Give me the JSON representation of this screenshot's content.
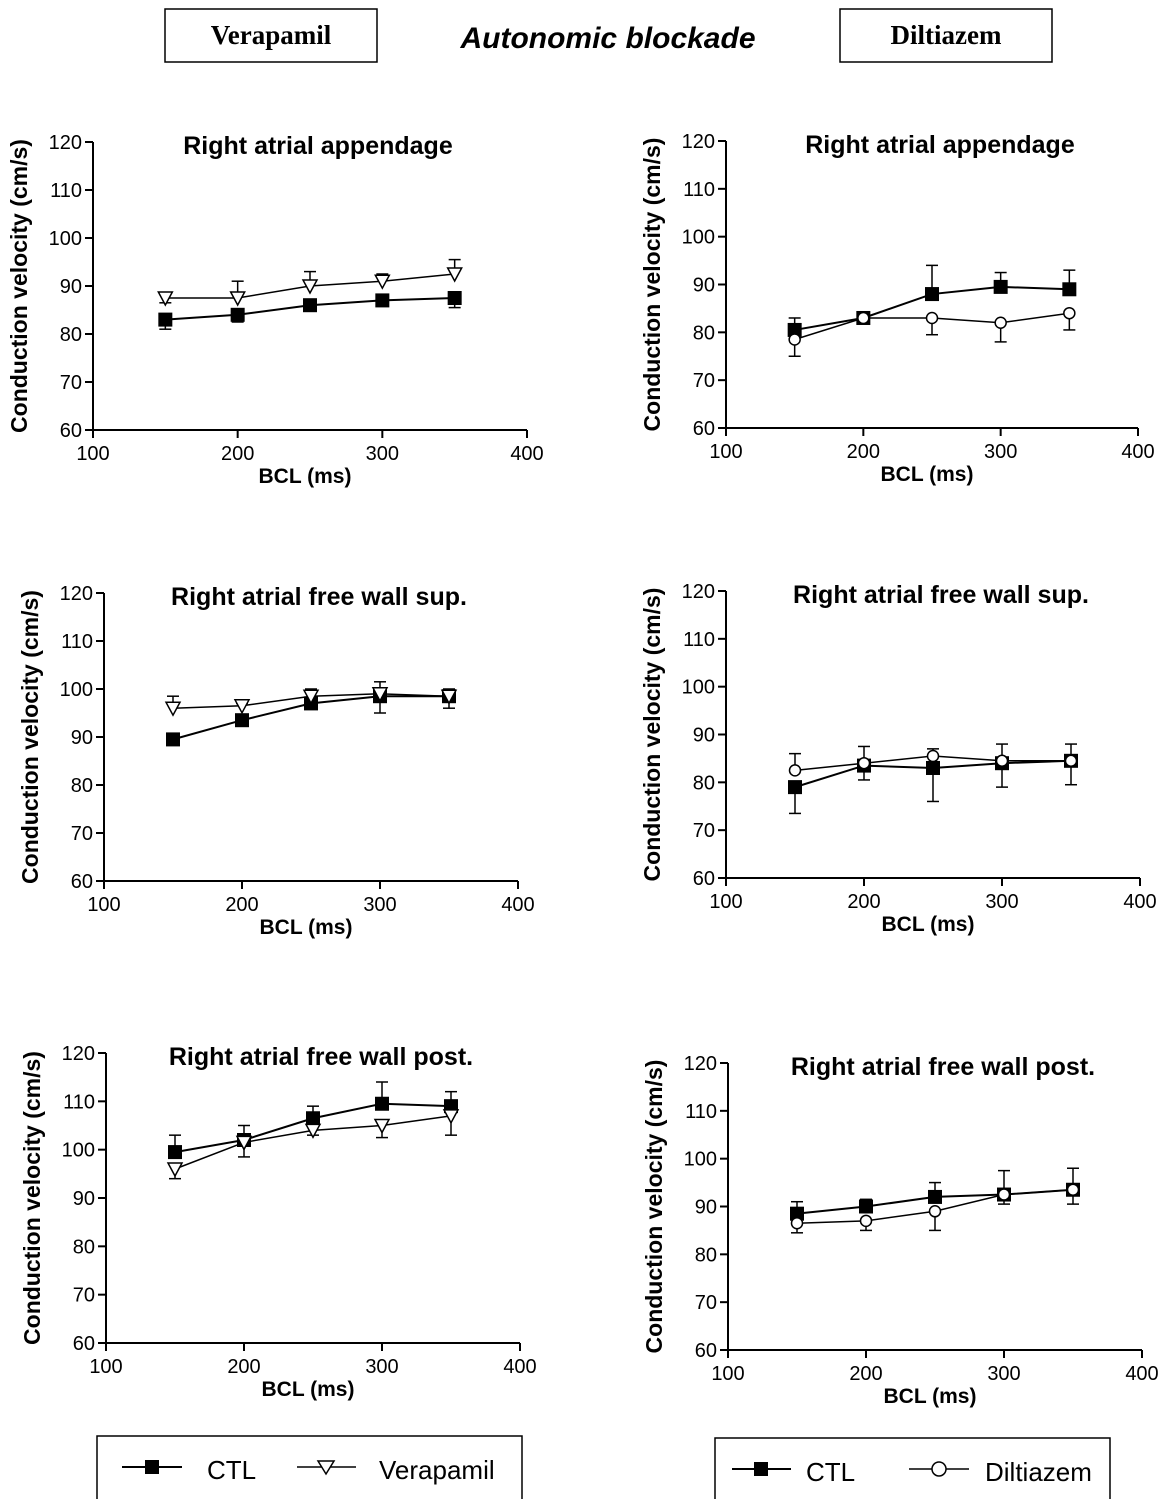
{
  "header": {
    "left_label": "Verapamil",
    "title": "Autonomic blockade",
    "right_label": "Diltiazem"
  },
  "legends": {
    "left": {
      "ctl": "CTL",
      "drug": "Verapamil"
    },
    "right": {
      "ctl": "CTL",
      "drug": "Diltiazem"
    }
  },
  "chart_data": [
    {
      "type": "line",
      "title": "Right atrial appendage",
      "xlabel": "BCL (ms)",
      "ylabel": "Conduction velocity (cm/s)",
      "xlim": [
        100,
        400
      ],
      "ylim": [
        60,
        120
      ],
      "xticks": [
        100,
        200,
        300,
        400
      ],
      "yticks": [
        60,
        70,
        80,
        90,
        100,
        110,
        120
      ],
      "x": [
        150,
        200,
        250,
        300,
        350
      ],
      "series": [
        {
          "name": "CTL",
          "marker": "filled-square",
          "values": [
            83,
            84,
            86,
            87,
            87.5
          ],
          "error": [
            2,
            1.5,
            1,
            1,
            2
          ],
          "error_dir": [
            -1,
            -1,
            -1,
            -1,
            -1
          ]
        },
        {
          "name": "Verapamil",
          "marker": "open-triangle-down",
          "values": [
            87.5,
            87.5,
            90,
            91,
            92.5
          ],
          "error": [
            1,
            3.5,
            3,
            1.5,
            3
          ],
          "error_dir": [
            -1,
            1,
            1,
            1,
            1
          ]
        }
      ]
    },
    {
      "type": "line",
      "title": "Right atrial appendage",
      "xlabel": "BCL (ms)",
      "ylabel": "Conduction velocity (cm/s)",
      "xlim": [
        100,
        400
      ],
      "ylim": [
        60,
        120
      ],
      "xticks": [
        100,
        200,
        300,
        400
      ],
      "yticks": [
        60,
        70,
        80,
        90,
        100,
        110,
        120
      ],
      "x": [
        150,
        200,
        250,
        300,
        350
      ],
      "series": [
        {
          "name": "CTL",
          "marker": "filled-square",
          "values": [
            80.5,
            83,
            88,
            89.5,
            89
          ],
          "error": [
            2.5,
            1,
            6,
            3,
            4
          ],
          "error_dir": [
            1,
            1,
            1,
            1,
            1
          ]
        },
        {
          "name": "Diltiazem",
          "marker": "open-circle",
          "values": [
            78.5,
            83,
            83,
            82,
            84
          ],
          "error": [
            3.5,
            1,
            3.5,
            4,
            3.5
          ],
          "error_dir": [
            -1,
            -1,
            -1,
            -1,
            -1
          ]
        }
      ]
    },
    {
      "type": "line",
      "title": "Right atrial free wall sup.",
      "xlabel": "BCL (ms)",
      "ylabel": "Conduction velocity (cm/s)",
      "xlim": [
        100,
        400
      ],
      "ylim": [
        60,
        120
      ],
      "xticks": [
        100,
        200,
        300,
        400
      ],
      "yticks": [
        60,
        70,
        80,
        90,
        100,
        110,
        120
      ],
      "x": [
        150,
        200,
        250,
        300,
        350
      ],
      "series": [
        {
          "name": "CTL",
          "marker": "filled-square",
          "values": [
            89.5,
            93.5,
            97,
            98.5,
            98.5
          ],
          "error": [
            1,
            1,
            1,
            3.5,
            2.5
          ],
          "error_dir": [
            -1,
            -1,
            -1,
            -1,
            -1
          ]
        },
        {
          "name": "Verapamil",
          "marker": "open-triangle-down",
          "values": [
            96,
            96.5,
            98.5,
            99,
            98.5
          ],
          "error": [
            2.5,
            0.5,
            1.5,
            2.5,
            1.5
          ],
          "error_dir": [
            1,
            1,
            1,
            1,
            1
          ]
        }
      ]
    },
    {
      "type": "line",
      "title": "Right atrial free wall sup.",
      "xlabel": "BCL (ms)",
      "ylabel": "Conduction velocity (cm/s)",
      "xlim": [
        100,
        400
      ],
      "ylim": [
        60,
        120
      ],
      "xticks": [
        100,
        200,
        300,
        400
      ],
      "yticks": [
        60,
        70,
        80,
        90,
        100,
        110,
        120
      ],
      "x": [
        150,
        200,
        250,
        300,
        350
      ],
      "series": [
        {
          "name": "CTL",
          "marker": "filled-square",
          "values": [
            79,
            83.5,
            83,
            84,
            84.5
          ],
          "error": [
            5.5,
            3,
            7,
            5,
            5
          ],
          "error_dir": [
            -1,
            -1,
            -1,
            -1,
            -1
          ]
        },
        {
          "name": "Diltiazem",
          "marker": "open-circle",
          "values": [
            82.5,
            84,
            85.5,
            84.5,
            84.5
          ],
          "error": [
            3.5,
            3.5,
            1.5,
            3.5,
            3.5
          ],
          "error_dir": [
            1,
            1,
            1,
            1,
            1
          ]
        }
      ]
    },
    {
      "type": "line",
      "title": "Right atrial free wall post.",
      "xlabel": "BCL (ms)",
      "ylabel": "Conduction velocity (cm/s)",
      "xlim": [
        100,
        400
      ],
      "ylim": [
        60,
        120
      ],
      "xticks": [
        100,
        200,
        300,
        400
      ],
      "yticks": [
        60,
        70,
        80,
        90,
        100,
        110,
        120
      ],
      "x": [
        150,
        200,
        250,
        300,
        350
      ],
      "series": [
        {
          "name": "CTL",
          "marker": "filled-square",
          "values": [
            99.5,
            102,
            106.5,
            109.5,
            109
          ],
          "error": [
            3.5,
            3,
            2.5,
            4.5,
            3
          ],
          "error_dir": [
            1,
            1,
            1,
            1,
            1
          ]
        },
        {
          "name": "Verapamil",
          "marker": "open-triangle-down",
          "values": [
            96,
            101.5,
            104,
            105,
            107
          ],
          "error": [
            2,
            3,
            1,
            2.5,
            4
          ],
          "error_dir": [
            -1,
            -1,
            -1,
            -1,
            -1
          ]
        }
      ]
    },
    {
      "type": "line",
      "title": "Right atrial free wall post.",
      "xlabel": "BCL (ms)",
      "ylabel": "Conduction velocity (cm/s)",
      "xlim": [
        100,
        400
      ],
      "ylim": [
        60,
        120
      ],
      "xticks": [
        100,
        200,
        300,
        400
      ],
      "yticks": [
        60,
        70,
        80,
        90,
        100,
        110,
        120
      ],
      "x": [
        150,
        200,
        250,
        300,
        350
      ],
      "series": [
        {
          "name": "CTL",
          "marker": "filled-square",
          "values": [
            88.5,
            90,
            92,
            92.5,
            93.5
          ],
          "error": [
            2.5,
            1.5,
            3,
            5,
            4.5
          ],
          "error_dir": [
            1,
            1,
            1,
            1,
            1
          ]
        },
        {
          "name": "Diltiazem",
          "marker": "open-circle",
          "values": [
            86.5,
            87,
            89,
            92.5,
            93.5
          ],
          "error": [
            2,
            2,
            4,
            2,
            3
          ],
          "error_dir": [
            -1,
            -1,
            -1,
            -1,
            -1
          ]
        }
      ]
    }
  ]
}
